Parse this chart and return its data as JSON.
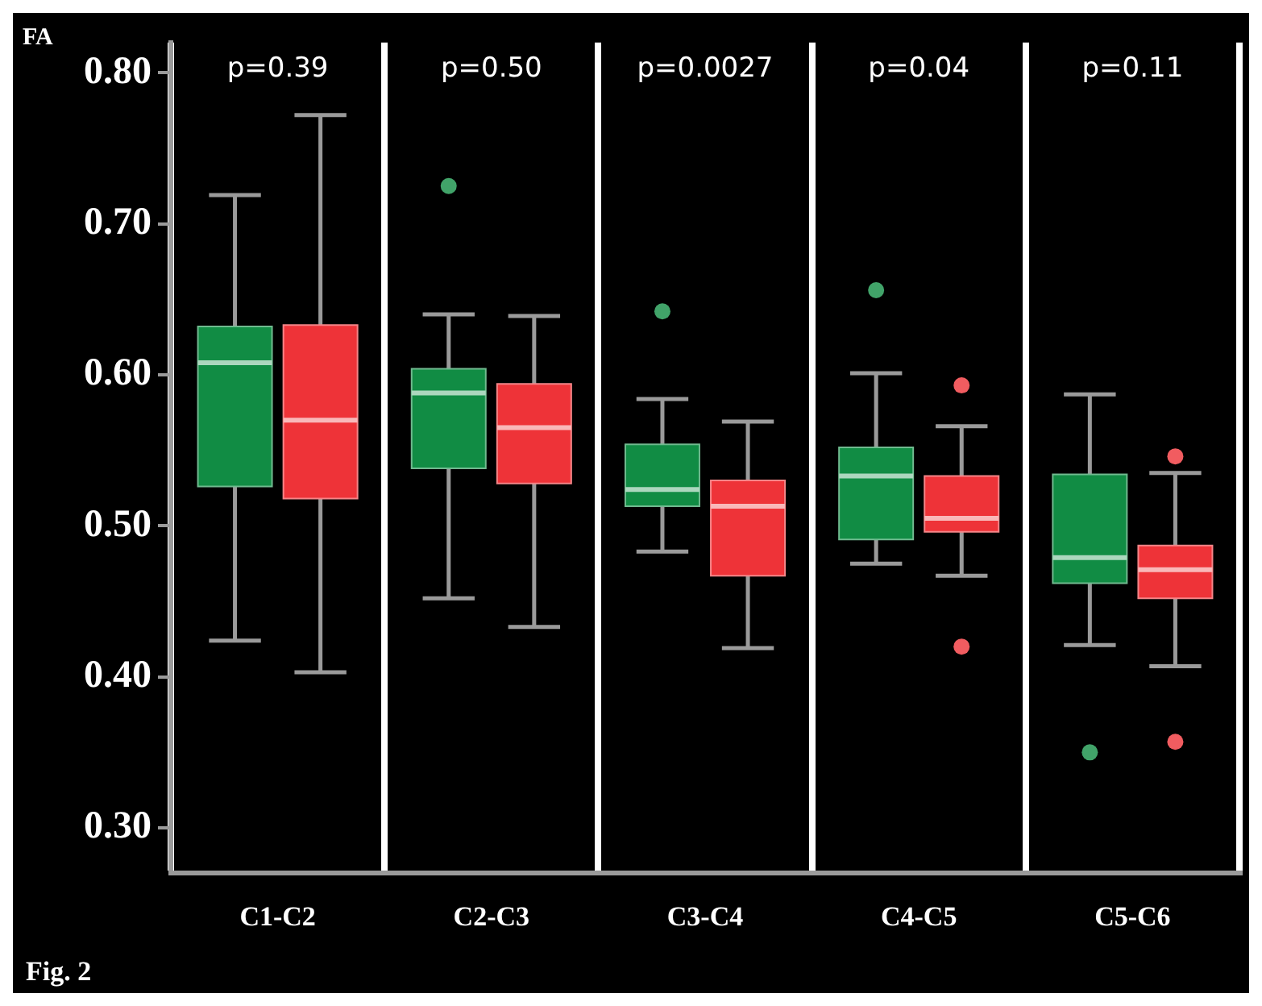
{
  "chart_data": {
    "type": "box",
    "ylabel": "FA",
    "categories": [
      "C1-C2",
      "C2-C3",
      "C3-C4",
      "C4-C5",
      "C5-C6"
    ],
    "series": [
      {
        "color": "#118c44",
        "boxes": [
          {
            "low": 0.424,
            "q1": 0.526,
            "median": 0.608,
            "q3": 0.632,
            "high": 0.719
          },
          {
            "low": 0.452,
            "q1": 0.538,
            "median": 0.588,
            "q3": 0.604,
            "high": 0.64,
            "outliers": [
              0.725
            ]
          },
          {
            "low": 0.483,
            "q1": 0.513,
            "median": 0.524,
            "q3": 0.554,
            "high": 0.584,
            "outliers": [
              0.642
            ]
          },
          {
            "low": 0.475,
            "q1": 0.491,
            "median": 0.533,
            "q3": 0.552,
            "high": 0.601,
            "outliers": [
              0.656
            ]
          },
          {
            "low": 0.421,
            "q1": 0.462,
            "median": 0.479,
            "q3": 0.534,
            "high": 0.587,
            "outliers": [
              0.35
            ]
          }
        ]
      },
      {
        "color": "#ee3338",
        "boxes": [
          {
            "low": 0.403,
            "q1": 0.518,
            "median": 0.57,
            "q3": 0.633,
            "high": 0.772
          },
          {
            "low": 0.433,
            "q1": 0.528,
            "median": 0.565,
            "q3": 0.594,
            "high": 0.639
          },
          {
            "low": 0.419,
            "q1": 0.467,
            "median": 0.513,
            "q3": 0.53,
            "high": 0.569
          },
          {
            "low": 0.467,
            "q1": 0.496,
            "median": 0.505,
            "q3": 0.533,
            "high": 0.566,
            "outliers": [
              0.593,
              0.42
            ]
          },
          {
            "low": 0.407,
            "q1": 0.452,
            "median": 0.471,
            "q3": 0.487,
            "high": 0.535,
            "outliers": [
              0.546,
              0.357
            ]
          }
        ]
      }
    ],
    "ylim": [
      0.27,
      0.82
    ],
    "yticks": [
      {
        "value": 0.3,
        "label": "0.30"
      },
      {
        "value": 0.4,
        "label": "0.40"
      },
      {
        "value": 0.5,
        "label": "0.50"
      },
      {
        "value": 0.6,
        "label": "0.60"
      },
      {
        "value": 0.7,
        "label": "0.70"
      },
      {
        "value": 0.8,
        "label": "0.80"
      }
    ],
    "grid": "x",
    "annotations": [
      "p=0.39",
      "p=0.50",
      "p=0.0027",
      "p=0.04",
      "p=0.11",
      "Fig. 2"
    ]
  }
}
